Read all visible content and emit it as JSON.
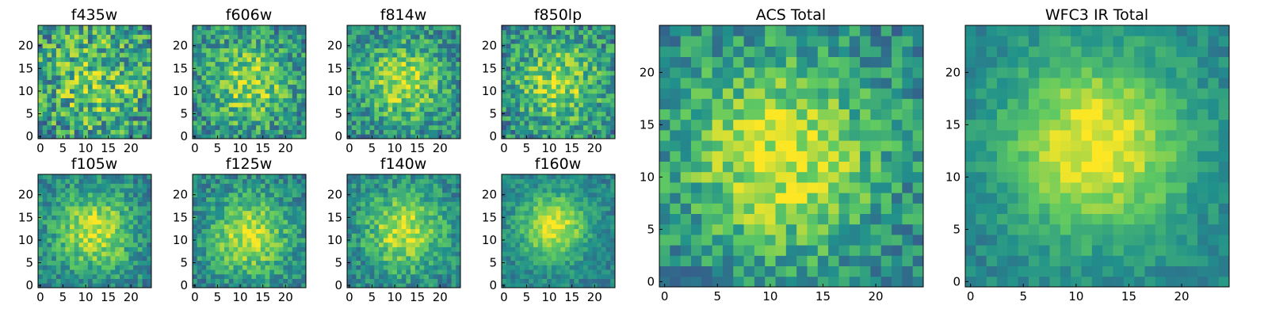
{
  "figure": {
    "description_colormap": "viridis",
    "colormap_stops": [
      "#440154",
      "#3b528b",
      "#21918c",
      "#5ec962",
      "#fde725"
    ]
  },
  "chart_data": [
    {
      "id": "f435w",
      "type": "heatmap",
      "title": "f435w",
      "grid": [
        25,
        25
      ],
      "xlim": [
        0,
        24
      ],
      "ylim": [
        0,
        24
      ],
      "xticks": [
        0,
        5,
        10,
        15,
        20
      ],
      "yticks": [
        0,
        5,
        10,
        15,
        20
      ],
      "center": [
        12,
        12
      ],
      "spread": 9.0,
      "noise": 0.45,
      "seed": 11,
      "peak": 0.55
    },
    {
      "id": "f606w",
      "type": "heatmap",
      "title": "f606w",
      "grid": [
        25,
        25
      ],
      "xlim": [
        0,
        24
      ],
      "ylim": [
        0,
        24
      ],
      "xticks": [
        0,
        5,
        10,
        15,
        20
      ],
      "yticks": [
        0,
        5,
        10,
        15,
        20
      ],
      "center": [
        12,
        12
      ],
      "spread": 7.0,
      "noise": 0.35,
      "seed": 23,
      "peak": 0.7
    },
    {
      "id": "f814w",
      "type": "heatmap",
      "title": "f814w",
      "grid": [
        25,
        25
      ],
      "xlim": [
        0,
        24
      ],
      "ylim": [
        0,
        24
      ],
      "xticks": [
        0,
        5,
        10,
        15,
        20
      ],
      "yticks": [
        0,
        5,
        10,
        15,
        20
      ],
      "center": [
        12,
        12
      ],
      "spread": 6.5,
      "noise": 0.32,
      "seed": 37,
      "peak": 0.75
    },
    {
      "id": "f850lp",
      "type": "heatmap",
      "title": "f850lp",
      "grid": [
        25,
        25
      ],
      "xlim": [
        0,
        24
      ],
      "ylim": [
        0,
        24
      ],
      "xticks": [
        0,
        5,
        10,
        15,
        20
      ],
      "yticks": [
        0,
        5,
        10,
        15,
        20
      ],
      "center": [
        12,
        12
      ],
      "spread": 7.0,
      "noise": 0.35,
      "seed": 41,
      "peak": 0.7
    },
    {
      "id": "f105w",
      "type": "heatmap",
      "title": "f105w",
      "grid": [
        25,
        25
      ],
      "xlim": [
        0,
        24
      ],
      "ylim": [
        0,
        24
      ],
      "xticks": [
        0,
        5,
        10,
        15,
        20
      ],
      "yticks": [
        0,
        5,
        10,
        15,
        20
      ],
      "center": [
        12,
        12
      ],
      "spread": 6.0,
      "noise": 0.25,
      "seed": 53,
      "peak": 0.85
    },
    {
      "id": "f125w",
      "type": "heatmap",
      "title": "f125w",
      "grid": [
        25,
        25
      ],
      "xlim": [
        0,
        24
      ],
      "ylim": [
        0,
        24
      ],
      "xticks": [
        0,
        5,
        10,
        15,
        20
      ],
      "yticks": [
        0,
        5,
        10,
        15,
        20
      ],
      "center": [
        12,
        11
      ],
      "spread": 6.0,
      "noise": 0.25,
      "seed": 67,
      "peak": 0.85
    },
    {
      "id": "f140w",
      "type": "heatmap",
      "title": "f140w",
      "grid": [
        25,
        25
      ],
      "xlim": [
        0,
        24
      ],
      "ylim": [
        0,
        24
      ],
      "xticks": [
        0,
        5,
        10,
        15,
        20
      ],
      "yticks": [
        0,
        5,
        10,
        15,
        20
      ],
      "center": [
        12,
        12
      ],
      "spread": 6.0,
      "noise": 0.25,
      "seed": 79,
      "peak": 0.85
    },
    {
      "id": "f160w",
      "type": "heatmap",
      "title": "f160w",
      "grid": [
        25,
        25
      ],
      "xlim": [
        0,
        24
      ],
      "ylim": [
        0,
        24
      ],
      "xticks": [
        0,
        5,
        10,
        15,
        20
      ],
      "yticks": [
        0,
        5,
        10,
        15,
        20
      ],
      "center": [
        11,
        13
      ],
      "spread": 5.0,
      "noise": 0.18,
      "seed": 83,
      "peak": 0.95
    },
    {
      "id": "acs_total",
      "type": "heatmap",
      "title": "ACS Total",
      "grid": [
        25,
        25
      ],
      "xlim": [
        0,
        24
      ],
      "ylim": [
        0,
        24
      ],
      "xticks": [
        0,
        5,
        10,
        15,
        20
      ],
      "yticks": [
        0,
        5,
        10,
        15,
        20
      ],
      "center": [
        11,
        12
      ],
      "spread": 6.5,
      "noise": 0.28,
      "seed": 97,
      "peak": 0.9
    },
    {
      "id": "wfc3_ir_total",
      "type": "heatmap",
      "title": "WFC3 IR Total",
      "grid": [
        25,
        25
      ],
      "xlim": [
        0,
        24
      ],
      "ylim": [
        0,
        24
      ],
      "xticks": [
        0,
        5,
        10,
        15,
        20
      ],
      "yticks": [
        0,
        5,
        10,
        15,
        20
      ],
      "center": [
        12,
        13
      ],
      "spread": 6.0,
      "noise": 0.14,
      "seed": 101,
      "peak": 1.0
    }
  ]
}
